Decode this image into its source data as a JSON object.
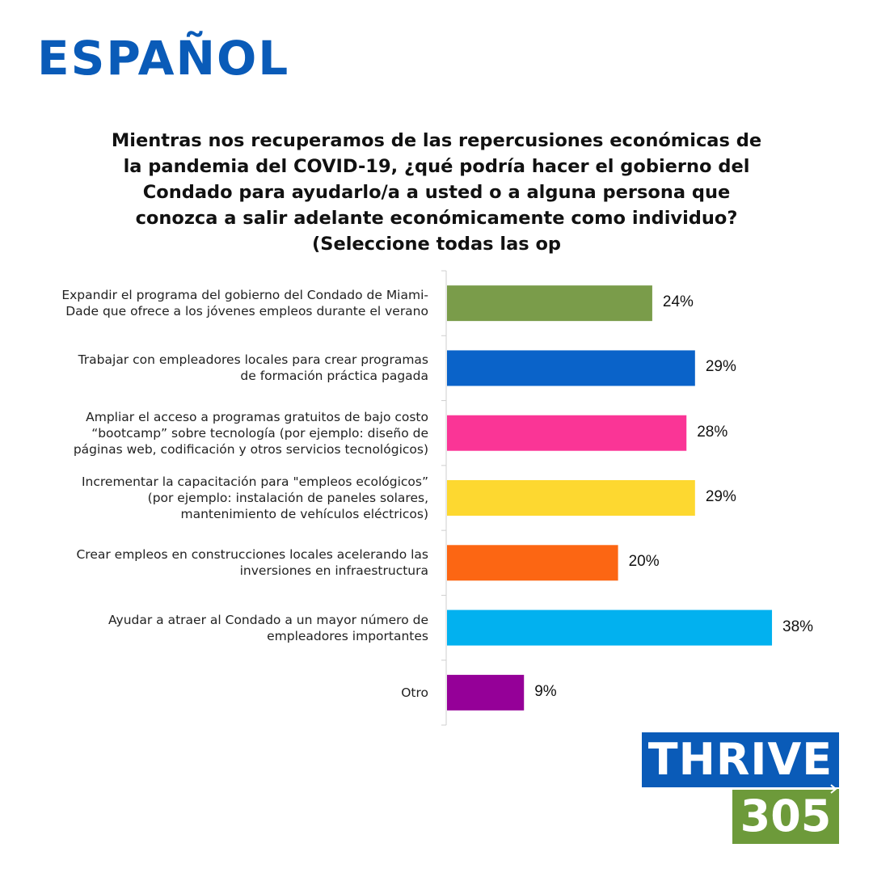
{
  "heading": "ESPAÑOL",
  "chart_data": {
    "type": "bar",
    "orientation": "horizontal",
    "title": "Mientras nos recuperamos de las repercusiones económicas de la pandemia del COVID-19, ¿qué podría hacer el gobierno del Condado para ayudarlo/a a usted o a alguna persona que conozca a salir adelante económicamente como individuo? (Seleccione todas las op",
    "title_lines": [
      "Mientras nos recuperamos de las repercusiones económicas de",
      "la pandemia del COVID-19, ¿qué podría hacer el gobierno del",
      "Condado para ayudarlo/a a usted o a alguna persona que",
      "conozca a salir adelante económicamente como individuo?",
      "(Seleccione todas las op"
    ],
    "categories": [
      "Expandir el programa del gobierno del Condado de Miami-\nDade que ofrece a los jóvenes empleos durante el verano",
      "Trabajar con empleadores locales para crear programas\nde formación práctica pagada",
      "Ampliar el acceso a programas gratuitos de bajo costo\n“bootcamp” sobre tecnología (por ejemplo: diseño de\npáginas web, codificación y otros servicios tecnológicos)",
      "Incrementar la capacitación para \"empleos ecológicos”\n(por ejemplo: instalación de paneles solares,\nmantenimiento de vehículos eléctricos)",
      "Crear empleos en construcciones locales acelerando las\ninversiones en infraestructura",
      "Ayudar a atraer al Condado a un mayor número de\nempleadores importantes",
      "Otro"
    ],
    "values": [
      24,
      29,
      28,
      29,
      20,
      38,
      9
    ],
    "value_labels": [
      "24%",
      "29%",
      "28%",
      "29%",
      "20%",
      "38%",
      "9%"
    ],
    "unit": "%",
    "colors": [
      "#7a9c4a",
      "#0a63c9",
      "#fa3596",
      "#fdd830",
      "#fc6613",
      "#02b1ef",
      "#950098"
    ],
    "xlim": [
      0,
      40
    ],
    "grid": false,
    "legend": "none"
  },
  "logo": {
    "line1": "THRIVE",
    "line2": "305",
    "colors": {
      "top": "#0a5bb8",
      "bottom": "#6d9a3a"
    }
  }
}
